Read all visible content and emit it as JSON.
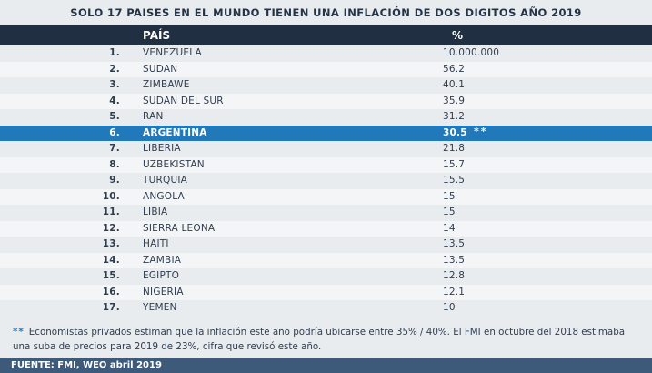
{
  "title": "SOLO 17 PAISES EN EL MUNDO TIENEN UNA INFLACIÓN DE DOS DIGITOS AÑO 2019",
  "header": {
    "country": "PAÍS",
    "percent": "%"
  },
  "highlight_color": "#2179b9",
  "chart_data": {
    "type": "table",
    "title": "SOLO 17 PAISES EN EL MUNDO TIENEN UNA INFLACIÓN DE DOS DIGITOS AÑO 2019",
    "columns": [
      "PAÍS",
      "%"
    ],
    "rows": [
      {
        "rank": "1.",
        "country": "VENEZUELA",
        "value": "10.000.000"
      },
      {
        "rank": "2.",
        "country": "SUDAN",
        "value": "56.2"
      },
      {
        "rank": "3.",
        "country": "ZIMBAWE",
        "value": "40.1"
      },
      {
        "rank": "4.",
        "country": "SUDAN DEL SUR",
        "value": "35.9"
      },
      {
        "rank": "5.",
        "country": "RAN",
        "value": "31.2"
      },
      {
        "rank": "6.",
        "country": "ARGENTINA",
        "value": "30.5",
        "mark": "**",
        "highlight": true
      },
      {
        "rank": "7.",
        "country": "LIBERIA",
        "value": "21.8"
      },
      {
        "rank": "8.",
        "country": "UZBEKISTAN",
        "value": "15.7"
      },
      {
        "rank": "9.",
        "country": "TURQUIA",
        "value": "15.5"
      },
      {
        "rank": "10.",
        "country": "ANGOLA",
        "value": "15"
      },
      {
        "rank": "11.",
        "country": "LIBIA",
        "value": "15"
      },
      {
        "rank": "12.",
        "country": "SIERRA LEONA",
        "value": "14"
      },
      {
        "rank": "13.",
        "country": "HAITI",
        "value": "13.5"
      },
      {
        "rank": "14.",
        "country": "ZAMBIA",
        "value": "13.5"
      },
      {
        "rank": "15.",
        "country": "EGIPTO",
        "value": "12.8"
      },
      {
        "rank": "16.",
        "country": "NIGERIA",
        "value": "12.1"
      },
      {
        "rank": "17.",
        "country": "YEMEN",
        "value": "10"
      }
    ]
  },
  "note": {
    "marker": "**",
    "text": "Economistas privados estiman que la inflación este año  podría ubicarse entre 35% / 40%. El FMI en octubre del 2018 estimaba una suba de precios para 2019 de 23%, cifra que revisó este año."
  },
  "footer": "FUENTE: FMI, WEO abril 2019"
}
